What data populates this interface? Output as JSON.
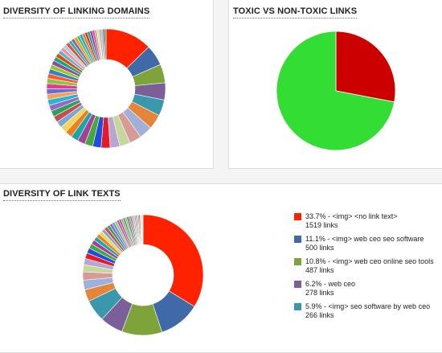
{
  "panels": {
    "domains_title": "DIVERSITY OF LINKING DOMAINS",
    "toxic_title": "TOXIC VS NON-TOXIC LINKS",
    "texts_title": "DIVERSITY OF LINK TEXTS"
  },
  "chart_data": [
    {
      "type": "pie",
      "variant": "donut",
      "title": "DIVERSITY OF LINKING DOMAINS",
      "slices": [
        {
          "value": 14.5,
          "color": "#ff2200"
        },
        {
          "value": 6.5,
          "color": "#3f6aa7"
        },
        {
          "value": 5.8,
          "color": "#7fa33b"
        },
        {
          "value": 5.3,
          "color": "#7a5f99"
        },
        {
          "value": 5.0,
          "color": "#3a98ad"
        },
        {
          "value": 4.6,
          "color": "#e5853a"
        },
        {
          "value": 4.1,
          "color": "#9fb1d8"
        },
        {
          "value": 3.7,
          "color": "#d79a96"
        },
        {
          "value": 3.3,
          "color": "#c5d79b"
        },
        {
          "value": 3.0,
          "color": "#b7a6cf"
        },
        {
          "value": 2.8,
          "color": "#e21b2b"
        },
        {
          "value": 2.6,
          "color": "#1f4de0"
        },
        {
          "value": 2.5,
          "color": "#45a83b"
        },
        {
          "value": 2.4,
          "color": "#a53f97"
        },
        {
          "value": 2.3,
          "color": "#1aa5a6"
        },
        {
          "value": 2.2,
          "color": "#ef7f1c"
        },
        {
          "value": 2.1,
          "color": "#f3d55b"
        },
        {
          "value": 2.0,
          "color": "#7ea5d8"
        },
        {
          "value": 1.9,
          "color": "#c44f4f"
        },
        {
          "value": 1.9,
          "color": "#29a35c"
        },
        {
          "value": 1.8,
          "color": "#9d63c7"
        },
        {
          "value": 1.8,
          "color": "#22b7d3"
        },
        {
          "value": 1.7,
          "color": "#f4a259"
        },
        {
          "value": 1.7,
          "color": "#6b6bd1"
        },
        {
          "value": 1.6,
          "color": "#e63b8a"
        },
        {
          "value": 1.6,
          "color": "#8bc34a"
        },
        {
          "value": 1.5,
          "color": "#ff5733"
        },
        {
          "value": 1.5,
          "color": "#2e86c1"
        },
        {
          "value": 1.4,
          "color": "#a2c523"
        },
        {
          "value": 1.4,
          "color": "#884ea0"
        },
        {
          "value": 1.3,
          "color": "#17a589"
        },
        {
          "value": 1.3,
          "color": "#d35400"
        },
        {
          "value": 1.2,
          "color": "#5dade2"
        },
        {
          "value": 1.2,
          "color": "#f1948a"
        },
        {
          "value": 1.1,
          "color": "#a9cce3"
        },
        {
          "value": 1.1,
          "color": "#e74c3c"
        },
        {
          "value": 1.0,
          "color": "#1abc9c"
        },
        {
          "value": 1.0,
          "color": "#9b59b6"
        },
        {
          "value": 1.0,
          "color": "#f39c12"
        },
        {
          "value": 0.9,
          "color": "#2ecc71"
        },
        {
          "value": 0.9,
          "color": "#3498db"
        },
        {
          "value": 0.9,
          "color": "#e67e22"
        },
        {
          "value": 0.8,
          "color": "#c0392b"
        },
        {
          "value": 0.8,
          "color": "#16a085"
        },
        {
          "value": 0.8,
          "color": "#8e44ad"
        },
        {
          "value": 0.7,
          "color": "#ff2d95"
        },
        {
          "value": 0.7,
          "color": "#7dcea0"
        },
        {
          "value": 0.7,
          "color": "#f7dc6f"
        },
        {
          "value": 0.6,
          "color": "#bb8fce"
        },
        {
          "value": 0.6,
          "color": "#85c1e9"
        },
        {
          "value": 0.5,
          "color": "#a93226"
        },
        {
          "value": 0.5,
          "color": "#229954"
        }
      ]
    },
    {
      "type": "pie",
      "title": "TOXIC VS NON-TOXIC LINKS",
      "slices": [
        {
          "value": 28,
          "color": "#cc0000"
        },
        {
          "value": 72,
          "color": "#33dd33"
        }
      ]
    },
    {
      "type": "pie",
      "variant": "donut",
      "title": "DIVERSITY OF LINK TEXTS",
      "slices": [
        {
          "value": 33.7,
          "color": "#ff2200",
          "label": "33.7% - <img> <no link text>",
          "count": "1519 links"
        },
        {
          "value": 11.1,
          "color": "#3f6aa7",
          "label": "11.1% - <img> web ceo seo software",
          "count": "500 links"
        },
        {
          "value": 10.8,
          "color": "#7fa33b",
          "label": "10.8% - <img> web ceo online seo tools",
          "count": "487 links"
        },
        {
          "value": 6.2,
          "color": "#7a5f99",
          "label": "6.2% - web ceo",
          "count": "278 links"
        },
        {
          "value": 5.9,
          "color": "#3a98ad",
          "label": "5.9% - <img> seo software by web ceo",
          "count": "266 links"
        },
        {
          "value": 3.2,
          "color": "#e5853a"
        },
        {
          "value": 2.6,
          "color": "#9fb1d8"
        },
        {
          "value": 2.2,
          "color": "#d79a96"
        },
        {
          "value": 1.9,
          "color": "#c5d79b"
        },
        {
          "value": 1.7,
          "color": "#b7a6cf"
        },
        {
          "value": 1.5,
          "color": "#e21b2b"
        },
        {
          "value": 1.4,
          "color": "#1f4de0"
        },
        {
          "value": 1.3,
          "color": "#45a83b"
        },
        {
          "value": 1.2,
          "color": "#a53f97"
        },
        {
          "value": 1.1,
          "color": "#1aa5a6"
        },
        {
          "value": 1.0,
          "color": "#ef7f1c"
        },
        {
          "value": 1.0,
          "color": "#f3d55b"
        },
        {
          "value": 0.9,
          "color": "#7ea5d8"
        },
        {
          "value": 0.9,
          "color": "#c44f4f"
        },
        {
          "value": 0.8,
          "color": "#29a35c"
        },
        {
          "value": 0.8,
          "color": "#9d63c7"
        },
        {
          "value": 0.7,
          "color": "#22b7d3"
        },
        {
          "value": 0.7,
          "color": "#f4a259"
        },
        {
          "value": 0.6,
          "color": "#6b6bd1"
        },
        {
          "value": 0.6,
          "color": "#e63b8a"
        },
        {
          "value": 0.6,
          "color": "#8bc34a"
        },
        {
          "value": 0.5,
          "color": "#2e86c1"
        },
        {
          "value": 0.5,
          "color": "#a2c523"
        },
        {
          "value": 0.5,
          "color": "#884ea0"
        },
        {
          "value": 0.4,
          "color": "#17a589"
        },
        {
          "value": 0.4,
          "color": "#d35400"
        },
        {
          "value": 0.4,
          "color": "#5dade2"
        },
        {
          "value": 0.4,
          "color": "#f1948a"
        },
        {
          "value": 0.3,
          "color": "#1abc9c"
        },
        {
          "value": 0.3,
          "color": "#9b59b6"
        },
        {
          "value": 0.3,
          "color": "#f39c12"
        },
        {
          "value": 0.3,
          "color": "#3498db"
        },
        {
          "value": 0.3,
          "color": "#c0392b"
        },
        {
          "value": 0.2,
          "color": "#b3b3b3"
        },
        {
          "value": 0.2,
          "color": "#999999"
        },
        {
          "value": 0.2,
          "color": "#cccccc"
        },
        {
          "value": 0.2,
          "color": "#888888"
        }
      ]
    }
  ]
}
